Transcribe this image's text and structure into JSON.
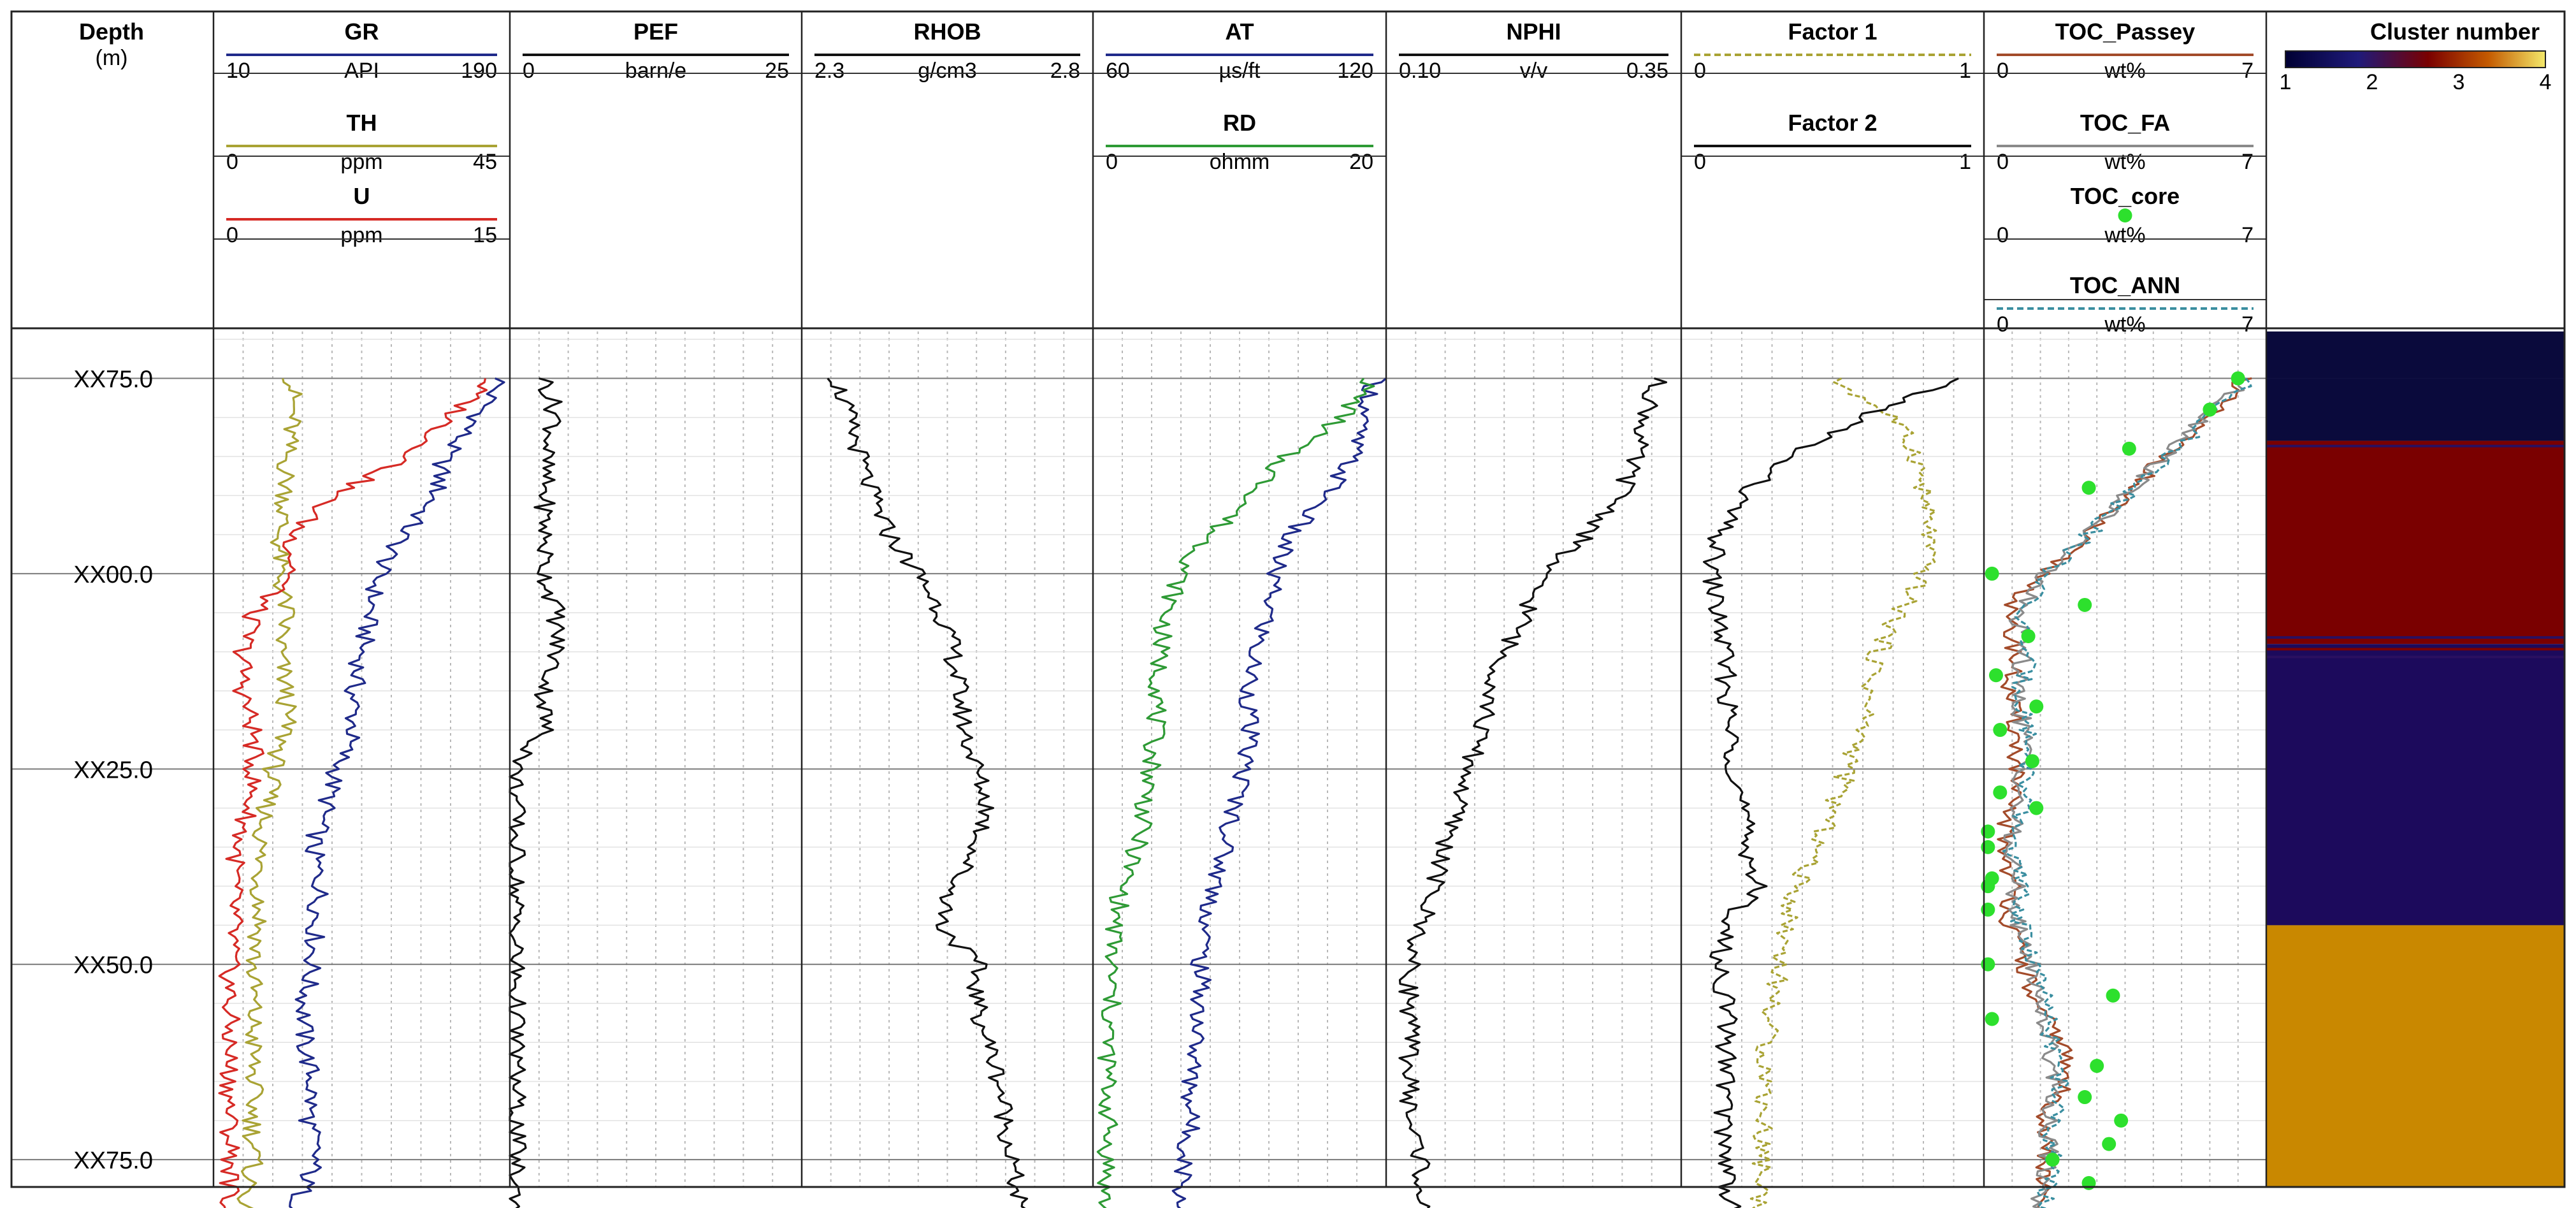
{
  "header": {
    "depth_title": "Depth",
    "depth_unit": "(m)"
  },
  "tracks": [
    {
      "id": "gr",
      "curves": [
        {
          "name": "GR",
          "unit": "API",
          "min": 10,
          "max": 190,
          "color": "#1f2a8a",
          "dash": "none"
        },
        {
          "name": "TH",
          "unit": "ppm",
          "min": 0,
          "max": 45,
          "color": "#a9a334",
          "dash": "none"
        },
        {
          "name": "U",
          "unit": "ppm",
          "min": 0,
          "max": 15,
          "color": "#d62a25",
          "dash": "none"
        }
      ]
    },
    {
      "id": "pef",
      "curves": [
        {
          "name": "PEF",
          "unit": "barn/e",
          "min": 0,
          "max": 25,
          "color": "#111111",
          "dash": "none"
        }
      ]
    },
    {
      "id": "rhob",
      "curves": [
        {
          "name": "RHOB",
          "unit": "g/cm3",
          "min": 2.3,
          "max": 2.8,
          "color": "#111111",
          "dash": "none"
        }
      ]
    },
    {
      "id": "at",
      "curves": [
        {
          "name": "AT",
          "unit": "µs/ft",
          "min": 60,
          "max": 120,
          "color": "#1f2a8a",
          "dash": "none"
        },
        {
          "name": "RD",
          "unit": "ohmm",
          "min": 0,
          "max": 20,
          "color": "#2e9a35",
          "dash": "none"
        }
      ]
    },
    {
      "id": "nphi",
      "curves": [
        {
          "name": "NPHI",
          "unit": "v/v",
          "min": "0.10",
          "max": "0.35",
          "color": "#111111",
          "dash": "none"
        }
      ]
    },
    {
      "id": "factor",
      "curves": [
        {
          "name": "Factor 1",
          "unit": "",
          "min": 0,
          "max": 1,
          "color": "#a9a334",
          "dash": "dashed"
        },
        {
          "name": "Factor 2",
          "unit": "",
          "min": 0,
          "max": 1,
          "color": "#111111",
          "dash": "none"
        }
      ]
    },
    {
      "id": "toc",
      "curves": [
        {
          "name": "TOC_Passey",
          "unit": "wt%",
          "min": 0,
          "max": 7,
          "color": "#a34b2a",
          "dash": "none"
        },
        {
          "name": "TOC_FA",
          "unit": "wt%",
          "min": 0,
          "max": 7,
          "color": "#8a8a8a",
          "dash": "none"
        },
        {
          "name": "TOC_core",
          "unit": "wt%",
          "min": 0,
          "max": 7,
          "color": "#2de02d",
          "dash": "marker"
        },
        {
          "name": "TOC_ANN",
          "unit": "wt%",
          "min": 0,
          "max": 7,
          "color": "#3a8ea0",
          "dash": "dashed"
        }
      ]
    }
  ],
  "cluster": {
    "title": "Cluster number",
    "ticks": [
      "1",
      "2",
      "3",
      "4"
    ],
    "colors": {
      "1": "#0a0a3c",
      "2": "#1c0a5c",
      "3": "#7a0000",
      "4": "#c98800"
    }
  },
  "chart_data": {
    "type": "line",
    "depth_labels": [
      "XX75.0",
      "XX00.0",
      "XX25.0",
      "XX50.0",
      "XX75.0"
    ],
    "depth": [
      0,
      5,
      10,
      15,
      20,
      25,
      30,
      35,
      40,
      45,
      50,
      55,
      60,
      65,
      70,
      75,
      80,
      85,
      90,
      95,
      100,
      105,
      110
    ],
    "series": [
      {
        "name": "GR",
        "values": [
          185,
          170,
          150,
          145,
          125,
          110,
          105,
          100,
          95,
          95,
          85,
          78,
          70,
          75,
          72,
          70,
          65,
          65,
          70,
          68,
          72,
          62,
          62
        ]
      },
      {
        "name": "TH",
        "values": [
          12,
          12,
          11,
          11,
          10,
          10,
          11,
          10,
          11,
          11,
          9,
          8,
          7,
          7,
          7,
          6,
          6,
          6,
          6,
          6,
          6,
          5,
          5
        ]
      },
      {
        "name": "U",
        "values": [
          14,
          12,
          10,
          6,
          4,
          4,
          2,
          1.5,
          1.5,
          2,
          2,
          1.8,
          1.2,
          1,
          1,
          0.8,
          0.8,
          0.8,
          0.8,
          0.8,
          0.9,
          0.8,
          0.8
        ]
      },
      {
        "name": "PEF",
        "values": [
          3,
          4,
          3,
          3,
          3,
          3,
          4,
          4,
          3,
          3,
          0.5,
          0.5,
          0.5,
          0.5,
          0.5,
          0.5,
          0.5,
          0.5,
          0.5,
          0.5,
          0.5,
          0.5,
          0.5
        ]
      },
      {
        "name": "RHOB",
        "values": [
          2.36,
          2.38,
          2.4,
          2.42,
          2.45,
          2.5,
          2.54,
          2.56,
          2.57,
          2.58,
          2.6,
          2.62,
          2.6,
          2.56,
          2.54,
          2.6,
          2.6,
          2.62,
          2.64,
          2.65,
          2.66,
          2.67,
          2.68
        ]
      },
      {
        "name": "AT",
        "values": [
          118,
          115,
          113,
          108,
          100,
          97,
          96,
          93,
          92,
          92,
          91,
          89,
          87,
          85,
          83,
          82,
          82,
          81,
          80,
          80,
          79,
          78,
          78
        ]
      },
      {
        "name": "RD",
        "values": [
          19,
          17,
          13,
          11,
          8,
          6,
          5,
          4.5,
          4.5,
          4.2,
          4,
          3.5,
          3,
          2,
          1.5,
          1.2,
          1.2,
          1,
          1,
          1,
          1,
          0.8,
          0.5
        ]
      },
      {
        "name": "NPHI",
        "values": [
          0.33,
          0.32,
          0.31,
          0.3,
          0.27,
          0.23,
          0.22,
          0.2,
          0.19,
          0.18,
          0.17,
          0.16,
          0.15,
          0.14,
          0.13,
          0.12,
          0.12,
          0.12,
          0.12,
          0.12,
          0.13,
          0.13,
          0.12
        ]
      },
      {
        "name": "Factor 1",
        "values": [
          0.5,
          0.7,
          0.78,
          0.8,
          0.82,
          0.8,
          0.72,
          0.65,
          0.62,
          0.6,
          0.55,
          0.5,
          0.45,
          0.38,
          0.35,
          0.33,
          0.3,
          0.28,
          0.28,
          0.27,
          0.27,
          0.26,
          0.26
        ]
      },
      {
        "name": "Factor 2",
        "values": [
          0.9,
          0.6,
          0.35,
          0.2,
          0.12,
          0.1,
          0.12,
          0.14,
          0.15,
          0.16,
          0.18,
          0.2,
          0.22,
          0.25,
          0.15,
          0.12,
          0.15,
          0.15,
          0.15,
          0.14,
          0.15,
          0.16,
          0.18
        ]
      },
      {
        "name": "TOC_Passey",
        "values": [
          6.5,
          5.5,
          4.5,
          3.5,
          2.5,
          1.5,
          0.5,
          0.8,
          0.6,
          0.8,
          0.8,
          0.6,
          0.5,
          0.7,
          0.6,
          1,
          1.2,
          2,
          2,
          1.5,
          1.5,
          1.4,
          1.2
        ]
      },
      {
        "name": "TOC_FA",
        "values": [
          6.5,
          5.5,
          4.5,
          3.5,
          2.5,
          1.5,
          0.8,
          1,
          0.8,
          1,
          1,
          0.8,
          0.6,
          0.8,
          0.8,
          1.2,
          1.4,
          1.6,
          1.8,
          1.6,
          1.6,
          1.4,
          1.4
        ]
      },
      {
        "name": "TOC_ANN",
        "values": [
          6.6,
          5.6,
          4.6,
          3.6,
          2.6,
          1.6,
          0.9,
          1.1,
          0.9,
          1.1,
          1.1,
          0.9,
          0.7,
          0.9,
          0.9,
          1.3,
          1.5,
          1.7,
          1.9,
          1.7,
          1.7,
          1.5,
          1.5
        ]
      }
    ],
    "toc_core": {
      "depth": [
        0,
        4,
        9,
        14,
        25,
        29,
        33,
        38,
        42,
        45,
        49,
        53,
        55,
        58,
        60,
        64,
        65,
        68,
        75,
        79,
        82,
        88,
        92,
        95,
        98,
        100,
        103
      ],
      "values": [
        6.3,
        5.6,
        3.6,
        2.6,
        0.2,
        2.5,
        1.1,
        0.3,
        1.3,
        0.4,
        1.2,
        0.4,
        1.3,
        0.1,
        0.1,
        0.2,
        0.1,
        0.1,
        0.1,
        3.2,
        0.2,
        2.8,
        2.5,
        3.4,
        3.1,
        1.7,
        2.6
      ]
    },
    "clusters": [
      {
        "from": 0,
        "to": 8,
        "cluster": 1
      },
      {
        "from": 8,
        "to": 34,
        "cluster": 3
      },
      {
        "from": 34,
        "to": 70,
        "cluster": 2
      },
      {
        "from": 70,
        "to": 110,
        "cluster": 4
      }
    ]
  }
}
